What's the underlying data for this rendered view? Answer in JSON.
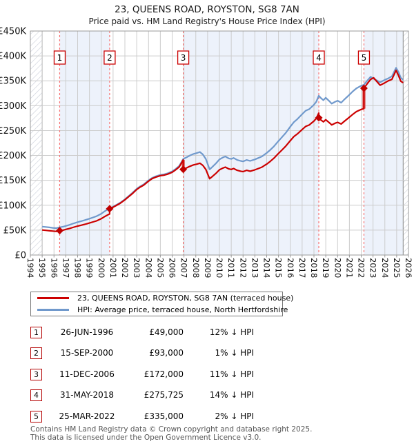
{
  "title": "23, QUEENS ROAD, ROYSTON, SG8 7AN",
  "subtitle": "Price paid vs. HM Land Registry's House Price Index (HPI)",
  "legend": {
    "entries": [
      {
        "label": "23, QUEENS ROAD, ROYSTON, SG8 7AN (terraced house)",
        "color": "#cc0000"
      },
      {
        "label": "HPI: Average price, terraced house, North Hertfordshire",
        "color": "#7099cc"
      }
    ]
  },
  "footer": {
    "line1": "Contains HM Land Registry data © Crown copyright and database right 2025.",
    "line2": "This data is licensed under the Open Government Licence v3.0."
  },
  "chart_data": {
    "type": "line",
    "title": "23, QUEENS ROAD, ROYSTON, SG8 7AN",
    "x_axis": {
      "min": 1994,
      "max": 2026,
      "ticks": [
        1994,
        1995,
        1996,
        1997,
        1998,
        1999,
        2000,
        2001,
        2002,
        2003,
        2004,
        2005,
        2006,
        2007,
        2008,
        2009,
        2010,
        2011,
        2012,
        2013,
        2014,
        2015,
        2016,
        2017,
        2018,
        2019,
        2020,
        2021,
        2022,
        2023,
        2024,
        2025,
        2026
      ]
    },
    "y_axis": {
      "min": 0,
      "max": 450,
      "unit": "£K",
      "ticks": [
        {
          "value": 0,
          "label": "£0"
        },
        {
          "value": 50,
          "label": "£50K"
        },
        {
          "value": 100,
          "label": "£100K"
        },
        {
          "value": 150,
          "label": "£150K"
        },
        {
          "value": 200,
          "label": "£200K"
        },
        {
          "value": 250,
          "label": "£250K"
        },
        {
          "value": 300,
          "label": "£300K"
        },
        {
          "value": 350,
          "label": "£350K"
        },
        {
          "value": 400,
          "label": "£400K"
        },
        {
          "value": 450,
          "label": "£450K"
        }
      ]
    },
    "bands": [
      [
        1996.48,
        2000.71
      ],
      [
        2006.94,
        2018.41
      ],
      [
        2022.23,
        2025.55
      ]
    ],
    "hatch_regions": [
      [
        1994,
        1995
      ],
      [
        2025.55,
        2026
      ]
    ],
    "colors": {
      "band": "#edf2fb",
      "grid": "#cccccc",
      "border": "#999999",
      "event_line": "#f87272",
      "event_box_border": "#cc0000",
      "hatch": "#c9cdd8",
      "red": "#cc0000",
      "blue": "#7099cc",
      "jump": "#dd6666",
      "tick_text": "#111111"
    },
    "events": [
      {
        "num": "1",
        "date": "26-JUN-1996",
        "price": "£49,000",
        "hpi_diff": "12% ↓ HPI",
        "year": 1996.48,
        "price_k": 49
      },
      {
        "num": "2",
        "date": "15-SEP-2000",
        "price": "£93,000",
        "hpi_diff": "1% ↓ HPI",
        "year": 2000.71,
        "price_k": 93
      },
      {
        "num": "3",
        "date": "11-DEC-2006",
        "price": "£172,000",
        "hpi_diff": "11% ↓ HPI",
        "year": 2006.94,
        "price_k": 172
      },
      {
        "num": "4",
        "date": "31-MAY-2018",
        "price": "£275,725",
        "hpi_diff": "14% ↓ HPI",
        "year": 2018.41,
        "price_k": 275.7
      },
      {
        "num": "5",
        "date": "25-MAR-2022",
        "price": "£335,000",
        "hpi_diff": "2% ↓ HPI",
        "year": 2022.23,
        "price_k": 335
      }
    ],
    "series": [
      {
        "name": "hpi",
        "color": "#7099cc",
        "points": [
          [
            1995.0,
            57
          ],
          [
            1995.3,
            56.3
          ],
          [
            1995.6,
            55.5
          ],
          [
            1995.9,
            54.6
          ],
          [
            1996.2,
            54
          ],
          [
            1996.48,
            55.7
          ],
          [
            1996.8,
            57
          ],
          [
            1997.0,
            58.5
          ],
          [
            1997.3,
            60.5
          ],
          [
            1997.6,
            63
          ],
          [
            1998.0,
            66
          ],
          [
            1998.3,
            68
          ],
          [
            1998.6,
            70
          ],
          [
            1999.0,
            73
          ],
          [
            1999.3,
            75.5
          ],
          [
            1999.6,
            78
          ],
          [
            2000.0,
            83
          ],
          [
            2000.3,
            88
          ],
          [
            2000.71,
            94
          ],
          [
            2001.0,
            97
          ],
          [
            2001.3,
            101
          ],
          [
            2001.6,
            105
          ],
          [
            2002.0,
            112
          ],
          [
            2002.3,
            118
          ],
          [
            2002.6,
            124
          ],
          [
            2003.0,
            133
          ],
          [
            2003.3,
            138
          ],
          [
            2003.6,
            142
          ],
          [
            2004.0,
            150
          ],
          [
            2004.3,
            155
          ],
          [
            2004.6,
            158
          ],
          [
            2005.0,
            161
          ],
          [
            2005.3,
            162
          ],
          [
            2005.6,
            164
          ],
          [
            2006.0,
            168
          ],
          [
            2006.3,
            173
          ],
          [
            2006.6,
            179
          ],
          [
            2006.94,
            193
          ],
          [
            2007.2,
            196
          ],
          [
            2007.5,
            200
          ],
          [
            2007.8,
            203
          ],
          [
            2008.1,
            205
          ],
          [
            2008.35,
            207
          ],
          [
            2008.6,
            202
          ],
          [
            2008.85,
            193
          ],
          [
            2009.17,
            172
          ],
          [
            2009.4,
            177
          ],
          [
            2009.7,
            184
          ],
          [
            2010.0,
            192
          ],
          [
            2010.3,
            196
          ],
          [
            2010.5,
            198
          ],
          [
            2010.8,
            194
          ],
          [
            2011.0,
            193
          ],
          [
            2011.2,
            195
          ],
          [
            2011.5,
            191
          ],
          [
            2011.8,
            189
          ],
          [
            2012.0,
            188
          ],
          [
            2012.3,
            191
          ],
          [
            2012.6,
            189
          ],
          [
            2013.0,
            192
          ],
          [
            2013.3,
            195
          ],
          [
            2013.6,
            198
          ],
          [
            2014.0,
            205
          ],
          [
            2014.3,
            211
          ],
          [
            2014.6,
            218
          ],
          [
            2015.0,
            229
          ],
          [
            2015.3,
            237
          ],
          [
            2015.6,
            245
          ],
          [
            2016.0,
            258
          ],
          [
            2016.3,
            267
          ],
          [
            2016.6,
            273
          ],
          [
            2017.0,
            283
          ],
          [
            2017.3,
            290
          ],
          [
            2017.6,
            293
          ],
          [
            2018.0,
            302
          ],
          [
            2018.2,
            308
          ],
          [
            2018.41,
            320
          ],
          [
            2018.6,
            315
          ],
          [
            2018.8,
            311
          ],
          [
            2019.0,
            316
          ],
          [
            2019.3,
            309
          ],
          [
            2019.5,
            304
          ],
          [
            2019.8,
            308
          ],
          [
            2020.0,
            310
          ],
          [
            2020.3,
            306
          ],
          [
            2020.6,
            313
          ],
          [
            2021.0,
            322
          ],
          [
            2021.3,
            329
          ],
          [
            2021.6,
            335
          ],
          [
            2022.0,
            340
          ],
          [
            2022.23,
            342
          ],
          [
            2022.5,
            350
          ],
          [
            2022.8,
            358
          ],
          [
            2023.05,
            354
          ],
          [
            2023.3,
            351
          ],
          [
            2023.6,
            347
          ],
          [
            2024.0,
            352
          ],
          [
            2024.3,
            355
          ],
          [
            2024.6,
            359
          ],
          [
            2024.95,
            376
          ],
          [
            2025.15,
            368
          ],
          [
            2025.35,
            356
          ],
          [
            2025.55,
            352
          ]
        ]
      },
      {
        "name": "price-paid",
        "color": "#cc0000",
        "points": [
          [
            1995.0,
            50.2
          ],
          [
            1995.3,
            49.6
          ],
          [
            1995.6,
            48.8
          ],
          [
            1995.9,
            48
          ],
          [
            1996.2,
            47.3
          ],
          [
            1996.48,
            49
          ],
          [
            1996.8,
            50.1
          ],
          [
            1997.0,
            51.5
          ],
          [
            1997.3,
            53.2
          ],
          [
            1997.6,
            55.4
          ],
          [
            1998.0,
            58.1
          ],
          [
            1998.3,
            59.8
          ],
          [
            1998.6,
            61.6
          ],
          [
            1999.0,
            64.2
          ],
          [
            1999.3,
            66.4
          ],
          [
            1999.6,
            68.6
          ],
          [
            2000.0,
            73
          ],
          [
            2000.3,
            77.4
          ],
          [
            2000.71,
            82.7
          ],
          [
            2000.71,
            93
          ],
          [
            2001.0,
            96
          ],
          [
            2001.3,
            99.9
          ],
          [
            2001.6,
            103.9
          ],
          [
            2002.0,
            110.8
          ],
          [
            2002.3,
            116.7
          ],
          [
            2002.6,
            122.7
          ],
          [
            2003.0,
            131.6
          ],
          [
            2003.3,
            136.5
          ],
          [
            2003.6,
            140.5
          ],
          [
            2004.0,
            148.4
          ],
          [
            2004.3,
            153.4
          ],
          [
            2004.6,
            156.3
          ],
          [
            2005.0,
            159.3
          ],
          [
            2005.3,
            160.3
          ],
          [
            2005.6,
            162.3
          ],
          [
            2006.0,
            166.2
          ],
          [
            2006.3,
            171.2
          ],
          [
            2006.6,
            177.1
          ],
          [
            2006.94,
            191
          ],
          [
            2006.94,
            172
          ],
          [
            2007.2,
            174.7
          ],
          [
            2007.5,
            178.2
          ],
          [
            2007.8,
            180.9
          ],
          [
            2008.1,
            182.7
          ],
          [
            2008.35,
            184.5
          ],
          [
            2008.6,
            180
          ],
          [
            2008.85,
            172
          ],
          [
            2009.17,
            153.3
          ],
          [
            2009.4,
            157.7
          ],
          [
            2009.7,
            164
          ],
          [
            2010.0,
            171.1
          ],
          [
            2010.3,
            174.7
          ],
          [
            2010.5,
            176.5
          ],
          [
            2010.8,
            172.9
          ],
          [
            2011.0,
            172
          ],
          [
            2011.2,
            173.8
          ],
          [
            2011.5,
            170.2
          ],
          [
            2011.8,
            168.4
          ],
          [
            2012.0,
            167.5
          ],
          [
            2012.3,
            170.2
          ],
          [
            2012.6,
            168.4
          ],
          [
            2013.0,
            171.1
          ],
          [
            2013.3,
            173.8
          ],
          [
            2013.6,
            176.5
          ],
          [
            2014.0,
            182.7
          ],
          [
            2014.3,
            188
          ],
          [
            2014.6,
            194.3
          ],
          [
            2015.0,
            204.1
          ],
          [
            2015.3,
            211.2
          ],
          [
            2015.6,
            218.3
          ],
          [
            2016.0,
            229.9
          ],
          [
            2016.3,
            238
          ],
          [
            2016.6,
            243.3
          ],
          [
            2017.0,
            252.2
          ],
          [
            2017.3,
            258.4
          ],
          [
            2017.6,
            261.1
          ],
          [
            2018.0,
            269.1
          ],
          [
            2018.2,
            274.5
          ],
          [
            2018.41,
            285.2
          ],
          [
            2018.41,
            275.7
          ],
          [
            2018.6,
            270.9
          ],
          [
            2018.8,
            267.5
          ],
          [
            2019.0,
            271.8
          ],
          [
            2019.3,
            265.7
          ],
          [
            2019.5,
            261.4
          ],
          [
            2019.8,
            264.9
          ],
          [
            2020.0,
            266.6
          ],
          [
            2020.3,
            263.2
          ],
          [
            2020.6,
            269.2
          ],
          [
            2021.0,
            276.9
          ],
          [
            2021.3,
            282.9
          ],
          [
            2021.6,
            288.1
          ],
          [
            2022.0,
            292.4
          ],
          [
            2022.23,
            294.1
          ],
          [
            2022.23,
            335
          ],
          [
            2022.5,
            344
          ],
          [
            2022.8,
            353
          ],
          [
            2023.05,
            356
          ],
          [
            2023.3,
            349
          ],
          [
            2023.6,
            341
          ],
          [
            2024.0,
            346
          ],
          [
            2024.3,
            350
          ],
          [
            2024.6,
            353
          ],
          [
            2024.95,
            371
          ],
          [
            2025.15,
            361
          ],
          [
            2025.35,
            349
          ],
          [
            2025.55,
            346
          ]
        ]
      }
    ]
  }
}
